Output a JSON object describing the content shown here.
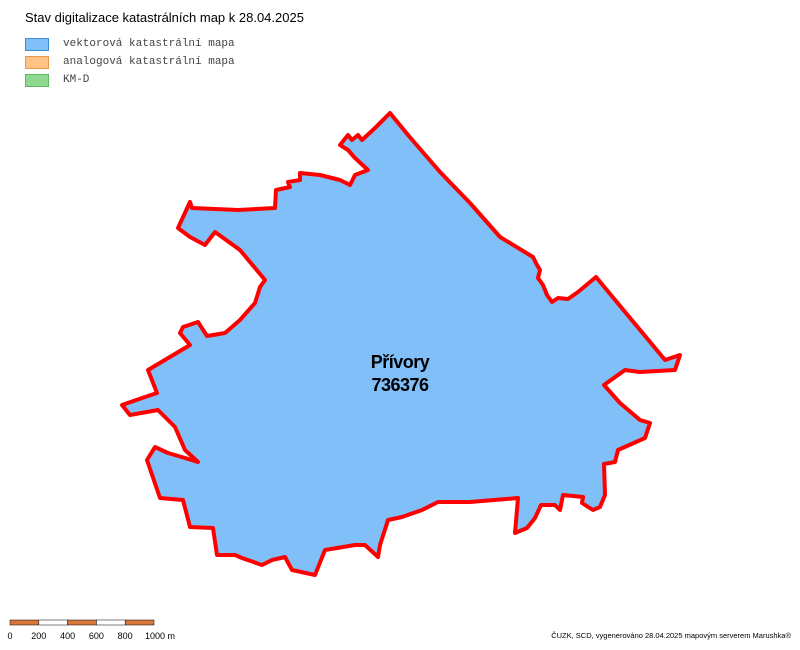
{
  "header": {
    "title": "Stav digitalizace katastrálních map k 28.04.2025"
  },
  "legend": [
    "vektorová katastrální mapa",
    "analogová katastrální mapa",
    "KM-D"
  ],
  "map": {
    "name": "Přívory",
    "code": "736376"
  },
  "scale": [
    "0",
    "200",
    "400",
    "600",
    "800",
    "1000 m"
  ],
  "footer": {
    "credit": "ČUZK, SCD, vygenerováno 28.04.2025 mapovým serverem Marushka®"
  }
}
